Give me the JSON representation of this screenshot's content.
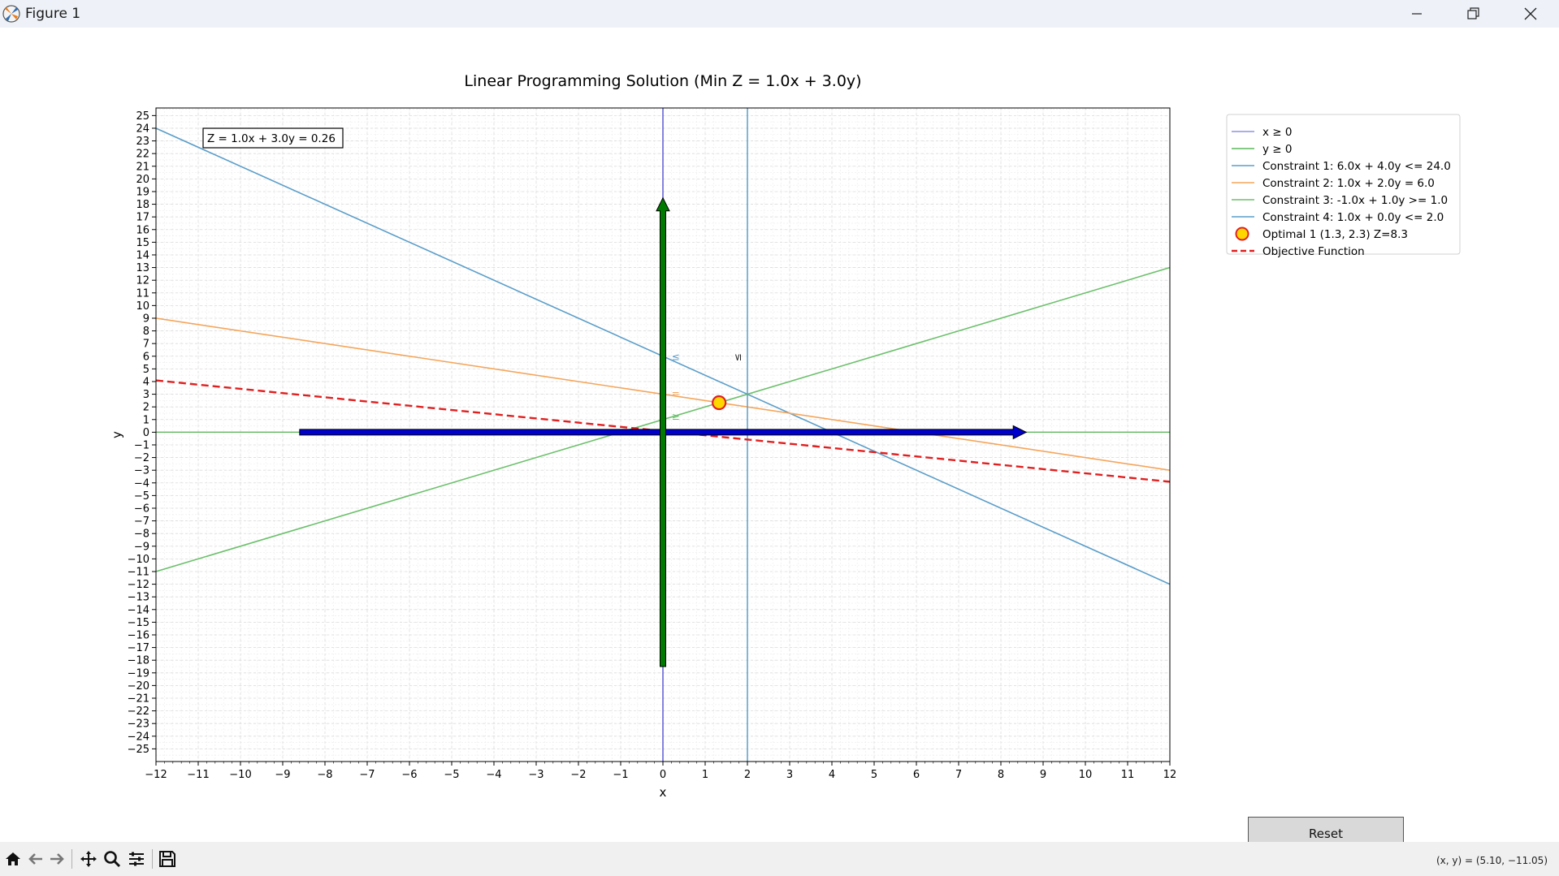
{
  "window": {
    "title": "Figure 1"
  },
  "chart_data": {
    "type": "line",
    "title": "Linear Programming Solution (Min Z = 1.0x + 3.0y)",
    "xlabel": "x",
    "ylabel": "y",
    "xlim": [
      -12,
      12
    ],
    "ylim": [
      -26,
      25.6
    ],
    "xticks": [
      -12,
      -11,
      -10,
      -9,
      -8,
      -7,
      -6,
      -5,
      -4,
      -3,
      -2,
      -1,
      0,
      1,
      2,
      3,
      4,
      5,
      6,
      7,
      8,
      9,
      10,
      11,
      12
    ],
    "yticks": [
      -25,
      -24,
      -23,
      -22,
      -21,
      -20,
      -19,
      -18,
      -17,
      -16,
      -15,
      -14,
      -13,
      -12,
      -11,
      -10,
      -9,
      -8,
      -7,
      -6,
      -5,
      -4,
      -3,
      -2,
      -1,
      0,
      1,
      2,
      3,
      4,
      5,
      6,
      7,
      8,
      9,
      10,
      11,
      12,
      13,
      14,
      15,
      16,
      17,
      18,
      19,
      20,
      21,
      22,
      23,
      24,
      25
    ],
    "grid": true,
    "legend_position": "outside upper right",
    "annotation_box": "Z = 1.0x + 3.0y = 0.26",
    "series": [
      {
        "name": "x ≥ 0",
        "kind": "vline",
        "x": 0,
        "color": "#5b5bd6"
      },
      {
        "name": "y ≥ 0",
        "kind": "hline",
        "y": 0,
        "color": "#5cb85c"
      },
      {
        "name": "Constraint 1: 6.0x + 4.0y <= 24.0",
        "kind": "line",
        "a": 6,
        "b": 4,
        "c": 24,
        "x": [
          -12,
          12
        ],
        "y": [
          24,
          -12
        ],
        "color": "#5b9ec9"
      },
      {
        "name": "Constraint 2: 1.0x + 2.0y = 6.0",
        "kind": "line",
        "a": 1,
        "b": 2,
        "c": 6,
        "x": [
          -12,
          12
        ],
        "y": [
          9,
          -3
        ],
        "color": "#f5a55a"
      },
      {
        "name": "Constraint 3: -1.0x + 1.0y >= 1.0",
        "kind": "line",
        "a": -1,
        "b": 1,
        "c": 1,
        "x": [
          -12,
          12
        ],
        "y": [
          -11,
          13
        ],
        "color": "#6cc06c"
      },
      {
        "name": "Constraint 4: 1.0x + 0.0y <= 2.0",
        "kind": "vline",
        "x": 2,
        "color": "#5b9ec9"
      },
      {
        "name": "Optimal 1 (1.3, 2.3) Z=8.3",
        "kind": "point",
        "x": 1.33,
        "y": 2.33,
        "color": "#ffd700",
        "edge": "#e02020"
      },
      {
        "name": "Objective Function",
        "kind": "dashed",
        "x": [
          -12,
          12
        ],
        "y": [
          4.09,
          -3.91
        ],
        "color": "#e02020"
      }
    ],
    "constraint_markers": [
      {
        "text": "≤",
        "x": 0.3,
        "y": 5.7,
        "color": "#5b9ec9"
      },
      {
        "text": "=",
        "x": 0.3,
        "y": 2.8,
        "color": "#f5a55a"
      },
      {
        "text": "≥",
        "x": 0.3,
        "y": 1.0,
        "color": "#6cc06c"
      },
      {
        "text": "≤",
        "x": 1.85,
        "y": 5.9,
        "color": "#222222",
        "rotate": true
      }
    ],
    "arrows": [
      {
        "name": "x-axis-arrow",
        "from": [
          -8.6,
          0
        ],
        "to": [
          8.6,
          0
        ],
        "color": "#0000cc"
      },
      {
        "name": "y-axis-arrow",
        "from": [
          0,
          -18.5
        ],
        "to": [
          0,
          18.5
        ],
        "color": "#007a00"
      }
    ]
  },
  "reset_label": "Reset",
  "status": {
    "coords": "(x, y) = (5.10, −11.05)"
  }
}
